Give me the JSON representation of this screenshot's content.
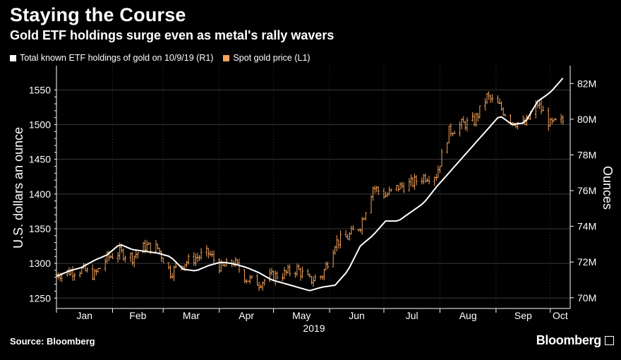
{
  "header": {
    "title": "Staying the Course",
    "subtitle": "Gold ETF holdings surge even as metal's rally wavers"
  },
  "footer": {
    "source": "Source: Bloomberg",
    "brand": "Bloomberg"
  },
  "colors": {
    "etf": "#ffffff",
    "gold": "#f5a35c",
    "grid": "#3a3a3a",
    "background": "#000000"
  },
  "chart_data": {
    "type": "line",
    "legend": [
      {
        "name": "Total known ETF holdings of gold on 10/9/19 (R1)",
        "color": "#ffffff"
      },
      {
        "name": "Spot gold price (L1)",
        "color": "#f5a35c"
      }
    ],
    "legend_placement": "top-left",
    "grid": true,
    "xlabel": "2019",
    "x_months": [
      "Jan",
      "Feb",
      "Mar",
      "Apr",
      "May",
      "Jun",
      "Jul",
      "Aug",
      "Sep",
      "Oct"
    ],
    "ylabel_left": "U.S. dollars an ounce",
    "ylabel_right": "Ounces",
    "ylim_left": [
      1235,
      1585
    ],
    "ylim_right": [
      69.4,
      83
    ],
    "yticks_left": [
      "1250",
      "1300",
      "1350",
      "1400",
      "1450",
      "1500",
      "1550"
    ],
    "yticks_right": [
      "70M",
      "72M",
      "74M",
      "76M",
      "78M",
      "80M",
      "82M"
    ],
    "yticks_left_values": [
      1250,
      1300,
      1350,
      1400,
      1450,
      1500,
      1550
    ],
    "yticks_right_values": [
      70,
      72,
      74,
      76,
      78,
      80,
      82
    ],
    "series": [
      {
        "name": "Spot gold price (L1)",
        "axis": "left",
        "style": "ohlc-bars",
        "dates": [
          "2019-01-01",
          "2019-01-08",
          "2019-01-15",
          "2019-01-22",
          "2019-01-29",
          "2019-02-05",
          "2019-02-12",
          "2019-02-19",
          "2019-02-26",
          "2019-03-05",
          "2019-03-12",
          "2019-03-19",
          "2019-03-26",
          "2019-04-02",
          "2019-04-09",
          "2019-04-16",
          "2019-04-23",
          "2019-04-30",
          "2019-05-07",
          "2019-05-14",
          "2019-05-21",
          "2019-05-28",
          "2019-06-04",
          "2019-06-11",
          "2019-06-18",
          "2019-06-25",
          "2019-07-02",
          "2019-07-09",
          "2019-07-16",
          "2019-07-23",
          "2019-07-30",
          "2019-08-06",
          "2019-08-13",
          "2019-08-20",
          "2019-08-27",
          "2019-09-03",
          "2019-09-10",
          "2019-09-17",
          "2019-09-24",
          "2019-10-01",
          "2019-10-08"
        ],
        "values": [
          1284,
          1288,
          1291,
          1283,
          1308,
          1316,
          1309,
          1325,
          1322,
          1287,
          1300,
          1308,
          1315,
          1293,
          1302,
          1278,
          1272,
          1281,
          1285,
          1292,
          1275,
          1283,
          1330,
          1338,
          1355,
          1410,
          1398,
          1410,
          1415,
          1425,
          1428,
          1490,
          1500,
          1505,
          1540,
          1526,
          1505,
          1500,
          1530,
          1500,
          1505
        ]
      },
      {
        "name": "Total known ETF holdings of gold on 10/9/19 (R1)",
        "axis": "right",
        "style": "line",
        "unit": "million ounces",
        "dates": [
          "2019-01-01",
          "2019-01-08",
          "2019-01-15",
          "2019-01-22",
          "2019-01-29",
          "2019-02-05",
          "2019-02-12",
          "2019-02-19",
          "2019-02-26",
          "2019-03-05",
          "2019-03-12",
          "2019-03-19",
          "2019-03-26",
          "2019-04-02",
          "2019-04-09",
          "2019-04-16",
          "2019-04-23",
          "2019-04-30",
          "2019-05-07",
          "2019-05-14",
          "2019-05-21",
          "2019-05-28",
          "2019-06-04",
          "2019-06-11",
          "2019-06-18",
          "2019-06-25",
          "2019-07-02",
          "2019-07-09",
          "2019-07-16",
          "2019-07-23",
          "2019-07-30",
          "2019-08-06",
          "2019-08-13",
          "2019-08-20",
          "2019-08-27",
          "2019-09-03",
          "2019-09-10",
          "2019-09-17",
          "2019-09-24",
          "2019-10-01",
          "2019-10-08"
        ],
        "values": [
          71.2,
          71.5,
          71.7,
          72.1,
          72.4,
          73.0,
          72.7,
          72.6,
          72.5,
          72.3,
          71.6,
          71.5,
          71.8,
          72.0,
          71.9,
          71.7,
          71.4,
          71.0,
          70.8,
          70.6,
          70.4,
          70.6,
          70.7,
          71.5,
          72.9,
          73.5,
          74.3,
          74.3,
          74.8,
          75.3,
          76.2,
          77.0,
          77.8,
          78.6,
          79.4,
          80.2,
          79.7,
          79.8,
          81.0,
          81.5,
          82.3
        ]
      }
    ]
  }
}
